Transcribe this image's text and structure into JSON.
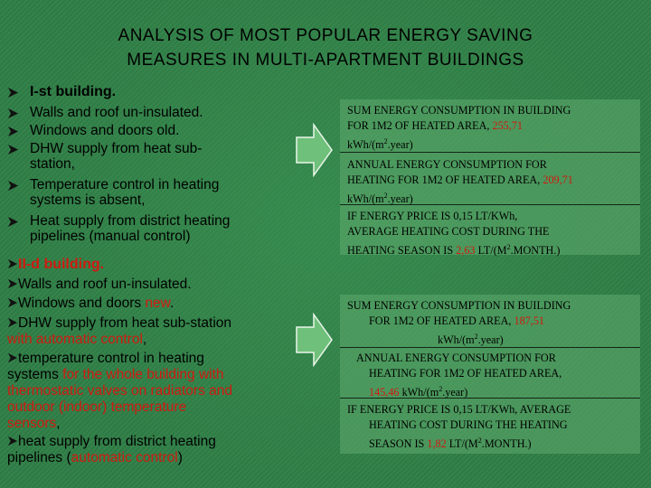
{
  "title": {
    "line1": "ANALYSIS OF MOST POPULAR ENERGY SAVING",
    "line2": "MEASURES IN MULTI-APARTMENT BUILDINGS"
  },
  "building1": {
    "heading": "I-st building.",
    "items": [
      "Walls and roof un-insulated.",
      "Windows and doors old.",
      "DHW supply from heat sub-",
      "station,",
      "Temperature control in heating",
      "systems is absent,",
      "Heat supply from district heating",
      "pipelines (manual control)"
    ]
  },
  "building2": {
    "heading": "II-d building.",
    "walls": "Walls and roof un-insulated.",
    "windows_a": "Windows and doors ",
    "windows_b": "new",
    "windows_c": ".",
    "dhw_a": "DHW supply from heat sub-station",
    "dhw_b": "with automatic control",
    "dhw_c": ",",
    "temp_a": "temperature control in heating",
    "temp_b": "systems ",
    "temp_c": "for the whole building with",
    "temp_d": "thermostatic valves on radiators and",
    "temp_e": "outdoor (indoor) temperature",
    "temp_f": "sensors",
    "temp_g": ",",
    "heat_a": "heat supply from district heating",
    "heat_b": "pipelines (",
    "heat_c": "automatic control",
    "heat_d": ")"
  },
  "box1": {
    "s1_l1": "SUM ENERGY CONSUMPTION IN BUILDING",
    "s1_l2": "FOR 1M2 OF HEATED AREA, ",
    "s1_val": "255,71",
    "s1_l3a": "kWh/(m",
    "s1_sup": "2",
    "s1_l3b": ".year)",
    "s2_l1": "ANNUAL ENERGY CONSUMPTION FOR",
    "s2_l2": "HEATING FOR 1M2 OF HEATED AREA, ",
    "s2_val": "209,71",
    "s2_l3a": "kWh/(m",
    "s2_sup": "2",
    "s2_l3b": ".year)",
    "s3_l1": "IF ENERGY PRICE IS 0,15 LT/KWh,",
    "s3_l2": "AVERAGE HEATING COST DURING THE",
    "s3_l3a": "HEATING SEASON IS ",
    "s3_val": "2,63",
    "s3_l3b": "  LT/(M",
    "s3_sup": "2",
    "s3_l3c": ".MONTH.)"
  },
  "box2": {
    "s1_l1": "SUM ENERGY CONSUMPTION IN BUILDING",
    "s1_l2": "FOR 1M2 OF HEATED AREA, ",
    "s1_val": "187,51",
    "s1_l3a": "kWh/(m",
    "s1_sup": "2",
    "s1_l3b": ".year)",
    "s2_l1": "ANNUAL ENERGY CONSUMPTION FOR",
    "s2_l2": "HEATING FOR 1M2 OF HEATED AREA,",
    "s2_val": "145,46",
    "s2_l3a": " kWh/(m",
    "s2_sup": "2",
    "s2_l3b": ".year)",
    "s3_l1": "IF ENERGY PRICE IS 0,15 LT/KWh, AVERAGE",
    "s3_l2": "HEATING COST DURING THE HEATING",
    "s3_l3a": "SEASON IS ",
    "s3_val": "1,82",
    "s3_l3b": " LT/(M",
    "s3_sup": "2",
    "s3_l3c": ".MONTH.)"
  },
  "colors": {
    "background": "#2f7e46",
    "highlight": "#d01a10",
    "arrow": "#6fc07a"
  }
}
